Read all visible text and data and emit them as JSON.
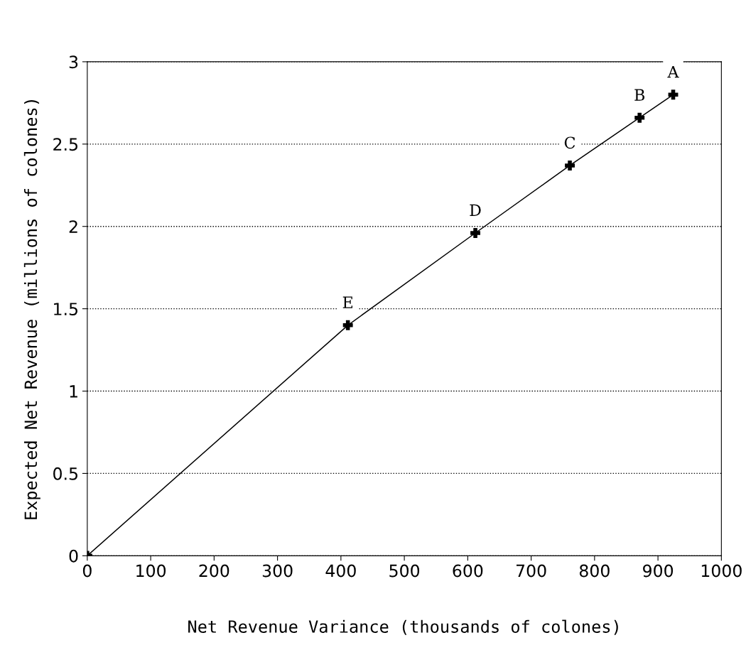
{
  "chart_data": {
    "type": "line",
    "xlabel": "Net Revenue Variance (thousands of colones)",
    "ylabel": "Expected Net Revenue (millions of colones)",
    "x": [
      0,
      411,
      612,
      761,
      871,
      924
    ],
    "series": [
      {
        "color": "#000000",
        "values": [
          0,
          1.4,
          1.96,
          2.37,
          2.66,
          2.8
        ]
      }
    ],
    "marker": "cross",
    "line_style": "solid",
    "grid": "y",
    "legend": false,
    "xlim": [
      0,
      1000
    ],
    "ylim": [
      0,
      3
    ],
    "xticks": [
      0,
      100,
      200,
      300,
      400,
      500,
      600,
      700,
      800,
      900,
      1000
    ],
    "yticks": [
      0,
      0.5,
      1,
      1.5,
      2,
      2.5,
      3
    ],
    "annotations": [
      {
        "text": "E",
        "x": 411,
        "y": 1.4
      },
      {
        "text": "D",
        "x": 612,
        "y": 1.96
      },
      {
        "text": "C",
        "x": 761,
        "y": 2.37
      },
      {
        "text": "B",
        "x": 871,
        "y": 2.66
      },
      {
        "text": "A",
        "x": 924,
        "y": 2.8
      }
    ]
  }
}
